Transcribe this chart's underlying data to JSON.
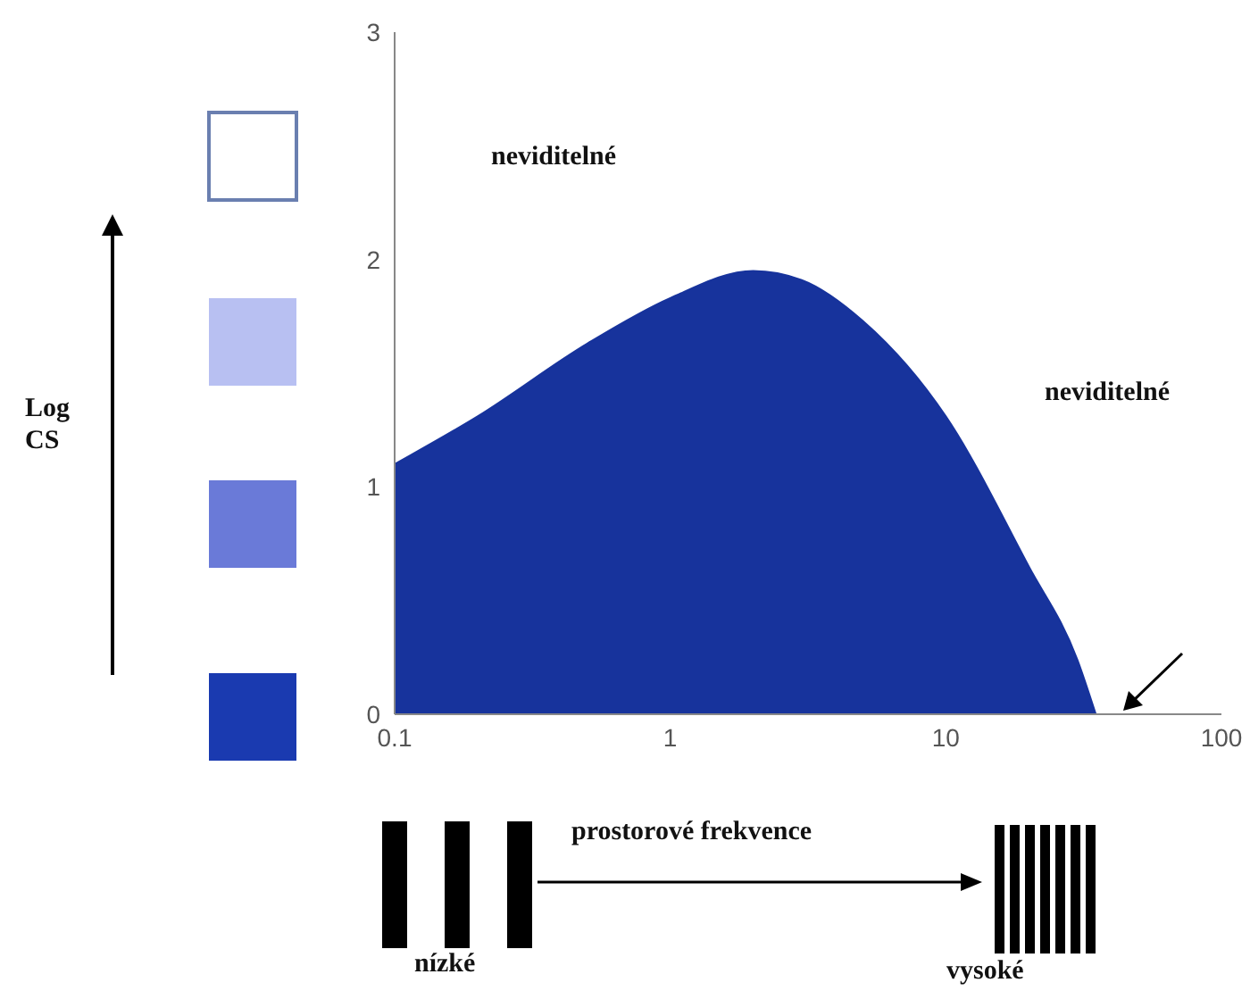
{
  "chart_data": {
    "type": "area",
    "xlabel": "prostorové frekvence",
    "x": [
      0.1,
      0.2,
      0.5,
      1,
      2,
      3,
      5,
      10,
      20,
      30,
      35
    ],
    "values": [
      1.1,
      1.31,
      1.63,
      1.83,
      1.95,
      1.91,
      1.73,
      1.31,
      0.65,
      0.24,
      0
    ],
    "color": "#17339c",
    "log": "x",
    "xlim": [
      0.1,
      100
    ],
    "xticks": [
      0.1,
      1,
      10,
      100
    ],
    "ylim": [
      0,
      3
    ],
    "yticks": [
      0,
      1,
      2,
      3
    ],
    "annotations": [
      "neviditelné",
      "neviditelné",
      "nízké",
      "vysoké",
      "Log CS"
    ]
  }
}
